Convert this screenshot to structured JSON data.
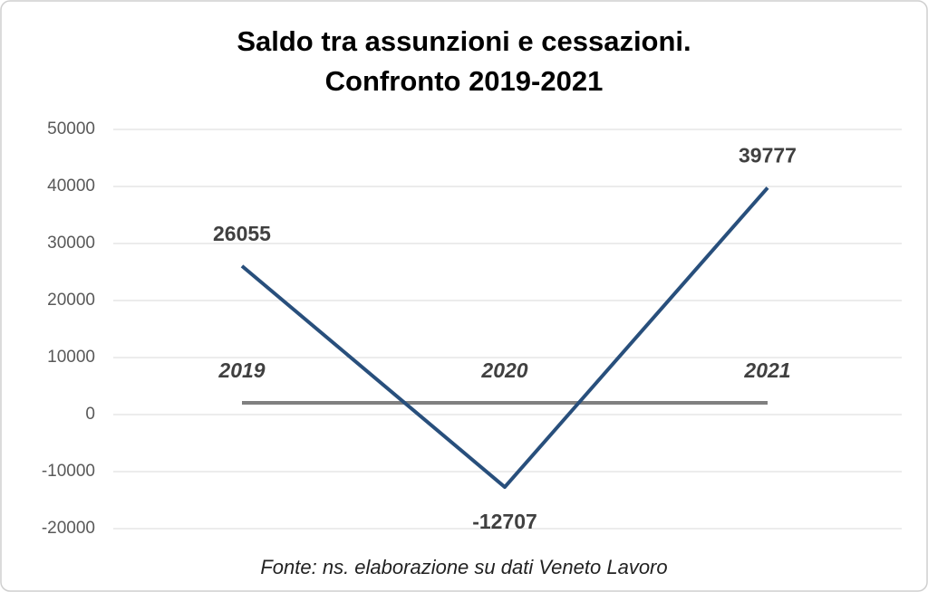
{
  "chart_data": {
    "type": "line",
    "title": [
      "Saldo tra assunzioni e cessazioni.",
      "Confronto 2019-2021"
    ],
    "source": "Fonte: ns. elaborazione su dati Veneto Lavoro",
    "categories": [
      "2019",
      "2020",
      "2021"
    ],
    "series": [
      {
        "color": "#284f7c",
        "values": [
          26055,
          -12707,
          39777
        ]
      }
    ],
    "ylim": [
      -20000,
      50000
    ],
    "yticks": [
      -20000,
      -10000,
      0,
      10000,
      20000,
      30000,
      40000,
      50000
    ],
    "grid": true,
    "axis_color": "#808080"
  }
}
